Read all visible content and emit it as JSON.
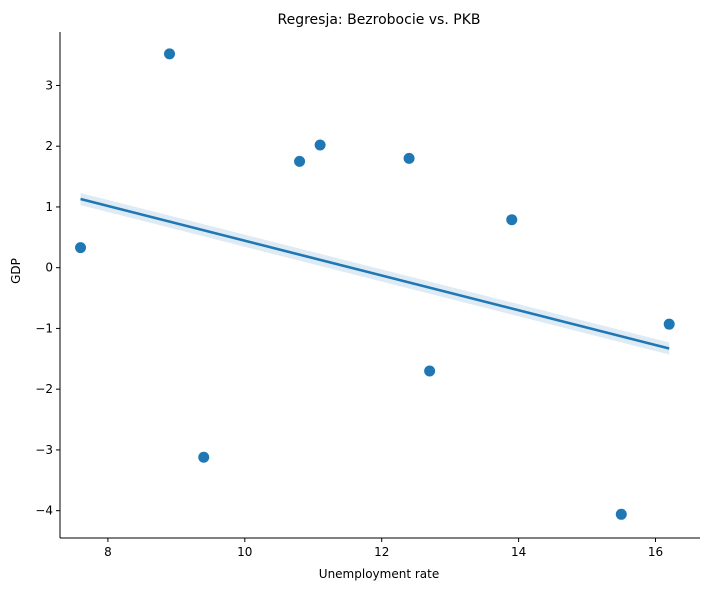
{
  "chart_data": {
    "type": "scatter",
    "title": "Regresja: Bezrobocie vs. PKB",
    "xlabel": "Unemployment rate",
    "ylabel": "GDP",
    "xlim": [
      7.3,
      16.65
    ],
    "ylim": [
      -4.45,
      3.88
    ],
    "xticks": [
      8,
      10,
      12,
      14,
      16
    ],
    "yticks": [
      -4,
      -3,
      -2,
      -1,
      0,
      1,
      2,
      3
    ],
    "xtick_labels": [
      "8",
      "10",
      "12",
      "14",
      "16"
    ],
    "ytick_labels": [
      "−4",
      "−3",
      "−2",
      "−1",
      "0",
      "1",
      "2",
      "3"
    ],
    "grid": false,
    "point_color": "#1f77b4",
    "series": [
      {
        "x": [
          7.6,
          8.9,
          9.4,
          10.8,
          11.1,
          12.4,
          12.7,
          13.9,
          15.5,
          16.2
        ],
        "y": [
          0.33,
          3.52,
          -3.12,
          1.75,
          2.02,
          1.8,
          -1.7,
          0.79,
          -4.06,
          -0.93
        ]
      }
    ],
    "regression": {
      "x": [
        7.6,
        16.2
      ],
      "y": [
        1.13,
        -1.33
      ],
      "ci_lower": [
        1.03,
        -1.43
      ],
      "ci_upper": [
        1.23,
        -1.23
      ],
      "line_color": "#1f77b4"
    }
  }
}
